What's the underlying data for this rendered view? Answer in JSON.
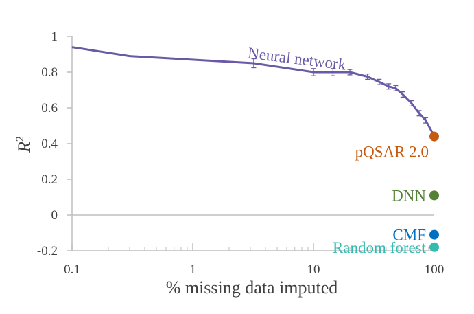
{
  "chart_data": {
    "type": "line",
    "xlabel": "% missing data imputed",
    "ylabel": "R",
    "ylabel_superscript": "2",
    "x_scale": "log",
    "xlim": [
      0.1,
      100
    ],
    "ylim": [
      -0.2,
      1.0
    ],
    "x_ticks": [
      {
        "value": 0.1,
        "label": "0.1"
      },
      {
        "value": 1,
        "label": "1"
      },
      {
        "value": 10,
        "label": "10"
      },
      {
        "value": 100,
        "label": "100"
      }
    ],
    "y_ticks": [
      {
        "value": -0.2,
        "label": "-0.2"
      },
      {
        "value": 0,
        "label": "0"
      },
      {
        "value": 0.2,
        "label": "0.2"
      },
      {
        "value": 0.4,
        "label": "0.4"
      },
      {
        "value": 0.6,
        "label": "0.6"
      },
      {
        "value": 0.8,
        "label": "0.8"
      },
      {
        "value": 1.0,
        "label": "1"
      }
    ],
    "grid": false,
    "series": [
      {
        "name": "Neural network",
        "color": "#6a5aa6",
        "points": [
          {
            "x": 0.1,
            "y": 0.94
          },
          {
            "x": 0.3,
            "y": 0.89
          },
          {
            "x": 3.2,
            "y": 0.85,
            "err": 0.025
          },
          {
            "x": 10,
            "y": 0.8,
            "err": 0.02
          },
          {
            "x": 14.5,
            "y": 0.8,
            "err": 0.02
          },
          {
            "x": 20,
            "y": 0.8,
            "err": 0.015
          },
          {
            "x": 28,
            "y": 0.775,
            "err": 0.015
          },
          {
            "x": 35,
            "y": 0.745,
            "err": 0.015
          },
          {
            "x": 42,
            "y": 0.72,
            "err": 0.015
          },
          {
            "x": 48,
            "y": 0.71,
            "err": 0.015
          },
          {
            "x": 55,
            "y": 0.675,
            "err": 0.015
          },
          {
            "x": 65,
            "y": 0.625,
            "err": 0.015
          },
          {
            "x": 75,
            "y": 0.57,
            "err": 0.015
          },
          {
            "x": 85,
            "y": 0.53,
            "err": 0.015
          },
          {
            "x": 95,
            "y": 0.47
          },
          {
            "x": 100,
            "y": 0.445
          }
        ]
      },
      {
        "name": "pQSAR 2.0",
        "color": "#c55a11",
        "points": [
          {
            "x": 100,
            "y": 0.44
          }
        ]
      },
      {
        "name": "DNN",
        "color": "#538135",
        "points": [
          {
            "x": 100,
            "y": 0.11
          }
        ]
      },
      {
        "name": "CMF",
        "color": "#0070c0",
        "points": [
          {
            "x": 100,
            "y": -0.11
          }
        ]
      },
      {
        "name": "Random forest",
        "color": "#33bbb0",
        "points": [
          {
            "x": 100,
            "y": -0.18
          }
        ]
      }
    ]
  }
}
